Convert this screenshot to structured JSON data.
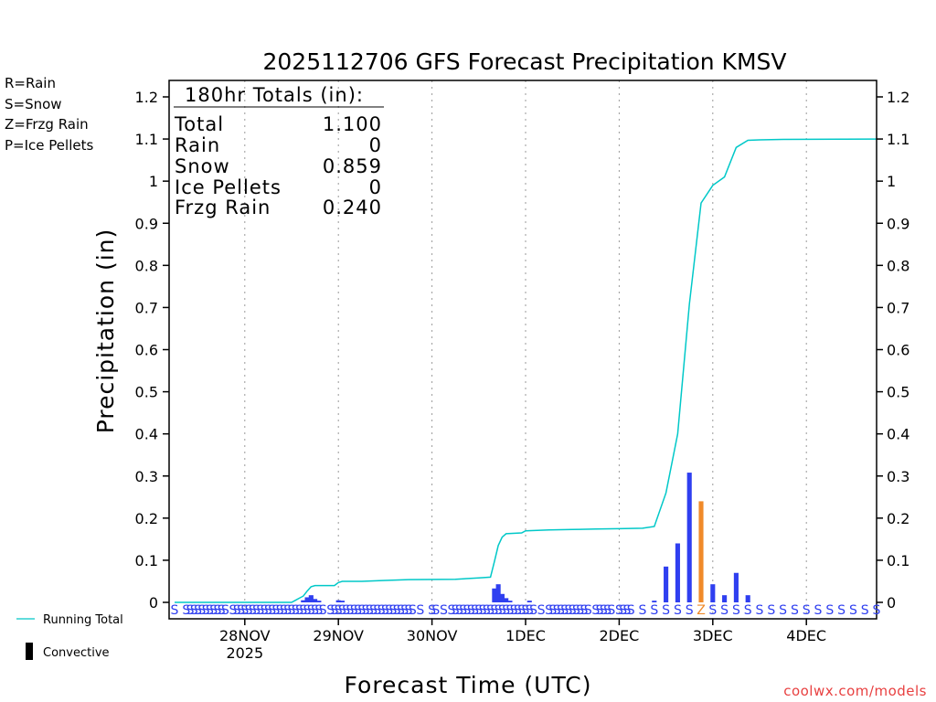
{
  "chart_data": {
    "type": "bar",
    "title": "2025112706 GFS Forecast Precipitation KMSV",
    "ylabel": "Precipitation (in)",
    "xlabel": "Forecast Time (UTC)",
    "ylim": [
      0,
      1.2
    ],
    "y_ticks": [
      "0",
      "0.1",
      "0.2",
      "0.3",
      "0.4",
      "0.5",
      "0.6",
      "0.7",
      "0.8",
      "0.9",
      "1",
      "1.1",
      "1.2"
    ],
    "x_ticks": [
      {
        "label": "28NOV",
        "sub": "2025",
        "hour": 18
      },
      {
        "label": "29NOV",
        "sub": "",
        "hour": 42
      },
      {
        "label": "30NOV",
        "sub": "",
        "hour": 66
      },
      {
        "label": "1DEC",
        "sub": "",
        "hour": 90
      },
      {
        "label": "2DEC",
        "sub": "",
        "hour": 114
      },
      {
        "label": "3DEC",
        "sub": "",
        "hour": 138
      },
      {
        "label": "4DEC",
        "sub": "",
        "hour": 162
      }
    ],
    "x_range_hours": [
      0,
      180
    ],
    "legend_types": [
      {
        "label": "R=Rain",
        "color": "#22dd22"
      },
      {
        "label": "S=Snow",
        "color": "#3a5ae8"
      },
      {
        "label": "Z=Frzg Rain",
        "color": "#f08a2a"
      },
      {
        "label": "P=Ice Pellets",
        "color": "#e8309a"
      }
    ],
    "legend_series": [
      {
        "label": "Running Total",
        "color": "#00c8c8"
      },
      {
        "label": "Convective",
        "color": "#000000"
      }
    ],
    "totals": {
      "header": "180hr Totals (in):",
      "rows": [
        {
          "label": "Total",
          "value": "1.100"
        },
        {
          "label": "Rain",
          "value": "0"
        },
        {
          "label": "Snow",
          "value": "0.859"
        },
        {
          "label": "Ice Pellets",
          "value": "0"
        },
        {
          "label": "Frzg Rain",
          "value": "0.240"
        }
      ]
    },
    "bars": [
      {
        "hour": 33,
        "value": 0.005,
        "type": "snow"
      },
      {
        "hour": 34,
        "value": 0.012,
        "type": "snow"
      },
      {
        "hour": 35,
        "value": 0.017,
        "type": "snow"
      },
      {
        "hour": 36,
        "value": 0.008,
        "type": "snow"
      },
      {
        "hour": 37,
        "value": 0.004,
        "type": "snow"
      },
      {
        "hour": 42,
        "value": 0.005,
        "type": "snow"
      },
      {
        "hour": 43,
        "value": 0.004,
        "type": "snow"
      },
      {
        "hour": 82,
        "value": 0.033,
        "type": "snow"
      },
      {
        "hour": 83,
        "value": 0.043,
        "type": "snow"
      },
      {
        "hour": 84,
        "value": 0.02,
        "type": "snow"
      },
      {
        "hour": 85,
        "value": 0.01,
        "type": "snow"
      },
      {
        "hour": 86,
        "value": 0.004,
        "type": "snow"
      },
      {
        "hour": 91,
        "value": 0.004,
        "type": "snow"
      },
      {
        "hour": 123,
        "value": 0.004,
        "type": "snow"
      },
      {
        "hour": 126,
        "value": 0.085,
        "type": "snow"
      },
      {
        "hour": 129,
        "value": 0.14,
        "type": "snow"
      },
      {
        "hour": 132,
        "value": 0.308,
        "type": "snow"
      },
      {
        "hour": 135,
        "value": 0.24,
        "type": "frzg"
      },
      {
        "hour": 138,
        "value": 0.043,
        "type": "snow"
      },
      {
        "hour": 141,
        "value": 0.017,
        "type": "snow"
      },
      {
        "hour": 144,
        "value": 0.07,
        "type": "snow"
      },
      {
        "hour": 147,
        "value": 0.017,
        "type": "snow"
      }
    ],
    "running_total": [
      [
        0,
        0
      ],
      [
        30,
        0
      ],
      [
        31,
        0.005
      ],
      [
        32,
        0.01
      ],
      [
        33,
        0.015
      ],
      [
        34,
        0.027
      ],
      [
        35,
        0.037
      ],
      [
        36,
        0.04
      ],
      [
        41,
        0.04
      ],
      [
        42,
        0.047
      ],
      [
        43,
        0.05
      ],
      [
        48,
        0.05
      ],
      [
        54,
        0.052
      ],
      [
        60,
        0.054
      ],
      [
        72,
        0.055
      ],
      [
        78,
        0.058
      ],
      [
        81,
        0.06
      ],
      [
        82,
        0.097
      ],
      [
        83,
        0.135
      ],
      [
        84,
        0.155
      ],
      [
        85,
        0.163
      ],
      [
        89,
        0.165
      ],
      [
        90,
        0.17
      ],
      [
        96,
        0.172
      ],
      [
        102,
        0.173
      ],
      [
        108,
        0.174
      ],
      [
        114,
        0.175
      ],
      [
        120,
        0.176
      ],
      [
        123,
        0.18
      ],
      [
        126,
        0.26
      ],
      [
        129,
        0.4
      ],
      [
        132,
        0.708
      ],
      [
        135,
        0.948
      ],
      [
        138,
        0.99
      ],
      [
        141,
        1.01
      ],
      [
        144,
        1.08
      ],
      [
        147,
        1.097
      ],
      [
        150,
        1.098
      ],
      [
        156,
        1.099
      ],
      [
        180,
        1.1
      ]
    ],
    "ptype_labels": [
      {
        "hour": 0,
        "text": "S"
      },
      {
        "hour": 3,
        "text": "S"
      },
      {
        "hour": 4,
        "text": "S"
      },
      {
        "hour": 5,
        "text": "S"
      },
      {
        "hour": 6,
        "text": "S"
      },
      {
        "hour": 7,
        "text": "S"
      },
      {
        "hour": 8,
        "text": "S"
      },
      {
        "hour": 9,
        "text": "S"
      },
      {
        "hour": 10,
        "text": "S"
      },
      {
        "hour": 11,
        "text": "S"
      },
      {
        "hour": 12,
        "text": "S"
      },
      {
        "hour": 13,
        "text": "S"
      },
      {
        "hour": 15,
        "text": "S"
      },
      {
        "hour": 16,
        "text": "S"
      },
      {
        "hour": 17,
        "text": "S"
      },
      {
        "hour": 18,
        "text": "S"
      },
      {
        "hour": 19,
        "text": "S"
      },
      {
        "hour": 20,
        "text": "S"
      },
      {
        "hour": 21,
        "text": "S"
      },
      {
        "hour": 22,
        "text": "S"
      },
      {
        "hour": 23,
        "text": "S"
      },
      {
        "hour": 24,
        "text": "S"
      },
      {
        "hour": 25,
        "text": "S"
      },
      {
        "hour": 26,
        "text": "S"
      },
      {
        "hour": 27,
        "text": "S"
      },
      {
        "hour": 28,
        "text": "S"
      },
      {
        "hour": 29,
        "text": "S"
      },
      {
        "hour": 30,
        "text": "S"
      },
      {
        "hour": 31,
        "text": "S"
      },
      {
        "hour": 32,
        "text": "S"
      },
      {
        "hour": 33,
        "text": "S"
      },
      {
        "hour": 34,
        "text": "S"
      },
      {
        "hour": 35,
        "text": "S"
      },
      {
        "hour": 36,
        "text": "S"
      },
      {
        "hour": 37,
        "text": "S"
      },
      {
        "hour": 38,
        "text": "S"
      },
      {
        "hour": 40,
        "text": "S"
      },
      {
        "hour": 41,
        "text": "S"
      },
      {
        "hour": 42,
        "text": "S"
      },
      {
        "hour": 43,
        "text": "S"
      },
      {
        "hour": 44,
        "text": "S"
      },
      {
        "hour": 45,
        "text": "S"
      },
      {
        "hour": 46,
        "text": "S"
      },
      {
        "hour": 47,
        "text": "S"
      },
      {
        "hour": 48,
        "text": "S"
      },
      {
        "hour": 49,
        "text": "S"
      },
      {
        "hour": 50,
        "text": "S"
      },
      {
        "hour": 51,
        "text": "S"
      },
      {
        "hour": 52,
        "text": "S"
      },
      {
        "hour": 53,
        "text": "S"
      },
      {
        "hour": 54,
        "text": "S"
      },
      {
        "hour": 55,
        "text": "S"
      },
      {
        "hour": 56,
        "text": "S"
      },
      {
        "hour": 57,
        "text": "S"
      },
      {
        "hour": 58,
        "text": "S"
      },
      {
        "hour": 59,
        "text": "S"
      },
      {
        "hour": 60,
        "text": "S"
      },
      {
        "hour": 61,
        "text": "S"
      },
      {
        "hour": 63,
        "text": "S"
      },
      {
        "hour": 66,
        "text": "S"
      },
      {
        "hour": 67,
        "text": "S"
      },
      {
        "hour": 69,
        "text": "S"
      },
      {
        "hour": 71,
        "text": "S"
      },
      {
        "hour": 72,
        "text": "S"
      },
      {
        "hour": 73,
        "text": "S"
      },
      {
        "hour": 74,
        "text": "S"
      },
      {
        "hour": 75,
        "text": "S"
      },
      {
        "hour": 76,
        "text": "S"
      },
      {
        "hour": 77,
        "text": "S"
      },
      {
        "hour": 78,
        "text": "S"
      },
      {
        "hour": 79,
        "text": "S"
      },
      {
        "hour": 80,
        "text": "S"
      },
      {
        "hour": 81,
        "text": "S"
      },
      {
        "hour": 82,
        "text": "S"
      },
      {
        "hour": 83,
        "text": "S"
      },
      {
        "hour": 84,
        "text": "S"
      },
      {
        "hour": 85,
        "text": "S"
      },
      {
        "hour": 86,
        "text": "S"
      },
      {
        "hour": 87,
        "text": "S"
      },
      {
        "hour": 88,
        "text": "S"
      },
      {
        "hour": 89,
        "text": "S"
      },
      {
        "hour": 90,
        "text": "S"
      },
      {
        "hour": 91,
        "text": "S"
      },
      {
        "hour": 92,
        "text": "S"
      },
      {
        "hour": 94,
        "text": "S"
      },
      {
        "hour": 96,
        "text": "S"
      },
      {
        "hour": 97,
        "text": "S"
      },
      {
        "hour": 98,
        "text": "S"
      },
      {
        "hour": 99,
        "text": "S"
      },
      {
        "hour": 100,
        "text": "S"
      },
      {
        "hour": 101,
        "text": "S"
      },
      {
        "hour": 102,
        "text": "S"
      },
      {
        "hour": 103,
        "text": "S"
      },
      {
        "hour": 104,
        "text": "S"
      },
      {
        "hour": 105,
        "text": "S"
      },
      {
        "hour": 106,
        "text": "S"
      },
      {
        "hour": 108,
        "text": "S"
      },
      {
        "hour": 109,
        "text": "S"
      },
      {
        "hour": 110,
        "text": "S"
      },
      {
        "hour": 111,
        "text": "S"
      },
      {
        "hour": 112,
        "text": "S"
      },
      {
        "hour": 114,
        "text": "S"
      },
      {
        "hour": 115,
        "text": "S"
      },
      {
        "hour": 116,
        "text": "S"
      },
      {
        "hour": 117,
        "text": "S"
      },
      {
        "hour": 120,
        "text": "S"
      },
      {
        "hour": 123,
        "text": "S"
      },
      {
        "hour": 126,
        "text": "S"
      },
      {
        "hour": 129,
        "text": "S"
      },
      {
        "hour": 132,
        "text": "S"
      },
      {
        "hour": 135,
        "text": "Z"
      },
      {
        "hour": 138,
        "text": "S"
      },
      {
        "hour": 141,
        "text": "S"
      },
      {
        "hour": 144,
        "text": "S"
      },
      {
        "hour": 147,
        "text": "S"
      },
      {
        "hour": 150,
        "text": "S"
      },
      {
        "hour": 153,
        "text": "S"
      },
      {
        "hour": 156,
        "text": "S"
      },
      {
        "hour": 159,
        "text": "S"
      },
      {
        "hour": 162,
        "text": "S"
      },
      {
        "hour": 165,
        "text": "S"
      },
      {
        "hour": 168,
        "text": "S"
      },
      {
        "hour": 171,
        "text": "S"
      },
      {
        "hour": 174,
        "text": "S"
      },
      {
        "hour": 177,
        "text": "S"
      },
      {
        "hour": 180,
        "text": "S"
      }
    ],
    "credit": "coolwx.com/models",
    "colors": {
      "snow": "#2f3ff0",
      "frzg": "#f08a2a",
      "running": "#00c8c8",
      "grid": "#9a9a9a"
    }
  }
}
